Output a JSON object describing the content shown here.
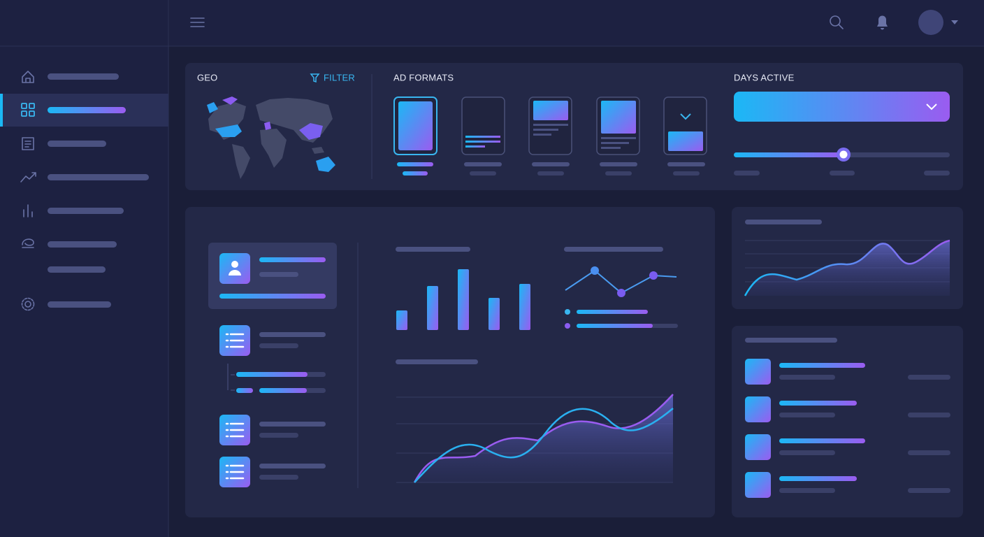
{
  "geo": {
    "title": "GEO",
    "filter": "FILTER"
  },
  "ad_formats": {
    "title": "AD FORMATS"
  },
  "days_active": {
    "title": "DAYS ACTIVE"
  }
}
